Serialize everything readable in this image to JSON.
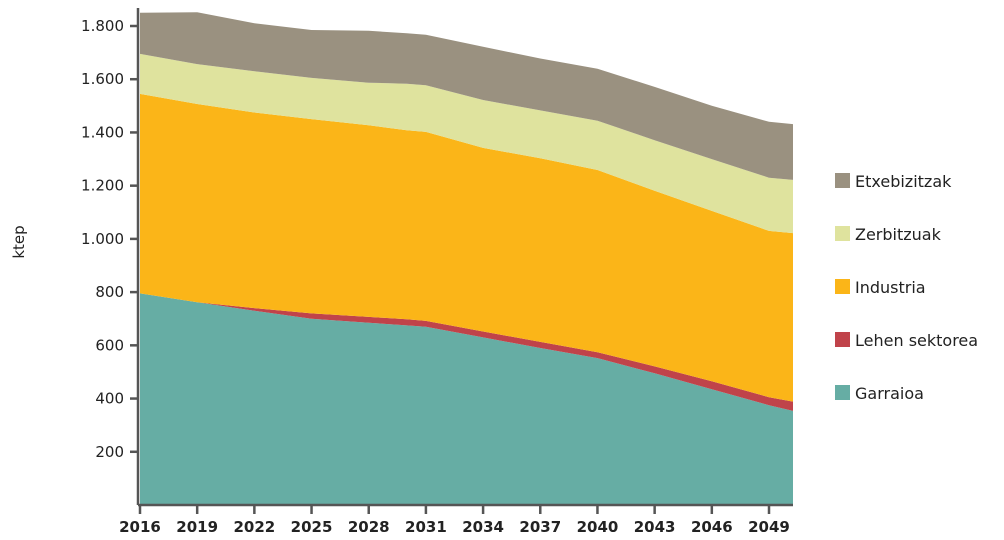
{
  "chart_data": {
    "type": "area",
    "stacked": true,
    "ylabel": "ktep",
    "xlabel": "",
    "title": "",
    "ylim": [
      0,
      1850
    ],
    "xlim": [
      2016,
      2050.5
    ],
    "yticks": [
      200,
      400,
      600,
      800,
      1000,
      1200,
      1400,
      1600,
      1800
    ],
    "ytick_labels": [
      "200",
      "400",
      "600",
      "800",
      "1.000",
      "1.200",
      "1.400",
      "1.600",
      "1.800"
    ],
    "xticks": [
      2016,
      2019,
      2022,
      2025,
      2028,
      2031,
      2034,
      2037,
      2040,
      2043,
      2046,
      2049
    ],
    "xtick_labels": [
      "2016",
      "2019",
      "2022",
      "2025",
      "2028",
      "2031",
      "2034",
      "2037",
      "2040",
      "2043",
      "2046",
      "2049"
    ],
    "grid": false,
    "legend_position": "right",
    "x": [
      2016,
      2019,
      2022,
      2025,
      2028,
      2030,
      2031,
      2034,
      2037,
      2040,
      2043,
      2046,
      2049,
      2050.5
    ],
    "series": [
      {
        "name": "Garraioa",
        "color": "#66ada4",
        "values": [
          795,
          762,
          730,
          700,
          685,
          675,
          670,
          630,
          590,
          552,
          495,
          435,
          375,
          350
        ]
      },
      {
        "name": "Lehen sektorea",
        "color": "#c0434a",
        "values": [
          0,
          0,
          10,
          20,
          22,
          23,
          22,
          22,
          23,
          22,
          26,
          30,
          30,
          35
        ]
      },
      {
        "name": "Industria",
        "color": "#fbb518",
        "values": [
          750,
          745,
          735,
          730,
          720,
          710,
          710,
          690,
          690,
          685,
          660,
          640,
          625,
          635
        ]
      },
      {
        "name": "Zerbitzuak",
        "color": "#dfe39e",
        "values": [
          150,
          150,
          155,
          155,
          160,
          175,
          175,
          180,
          180,
          185,
          190,
          195,
          200,
          200
        ]
      },
      {
        "name": "Etxebizitzak",
        "color": "#9a9180",
        "values": [
          155,
          195,
          180,
          180,
          195,
          190,
          190,
          200,
          195,
          195,
          200,
          200,
          210,
          210
        ]
      }
    ],
    "legend": [
      {
        "name": "Etxebizitzak",
        "color": "#9a9180"
      },
      {
        "name": "Zerbitzuak",
        "color": "#dfe39e"
      },
      {
        "name": "Industria",
        "color": "#fbb518"
      },
      {
        "name": "Lehen sektorea",
        "color": "#c0434a"
      },
      {
        "name": "Garraioa",
        "color": "#66ada4"
      }
    ],
    "axis_color": "#555555"
  }
}
